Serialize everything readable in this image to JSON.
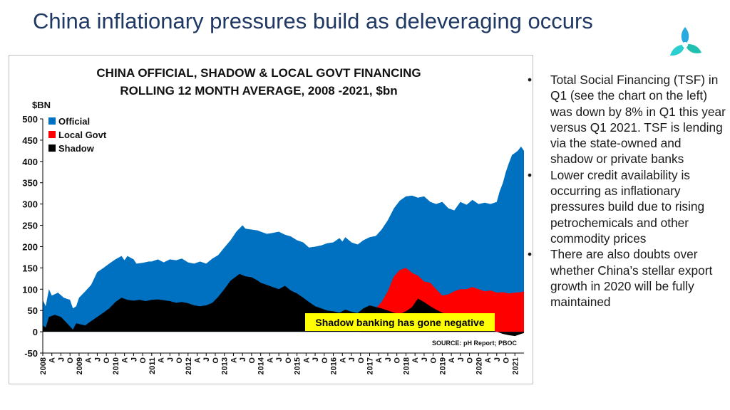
{
  "slide": {
    "title": "China inflationary pressures build as deleveraging occurs",
    "logo_icon": "company-logo-icon"
  },
  "bullets": [
    "Total Social Financing (TSF) in Q1 (see the chart on the left) was down by 8% in Q1 this year versus Q1 2021. TSF is lending via the state-owned and shadow or private banks",
    "Lower credit availability is occurring as inflationary pressures build due to rising petrochemicals and other commodity prices",
    "There are also doubts over whether China’s stellar export growth in 2020 will be fully maintained"
  ],
  "chart_data": {
    "type": "area",
    "title": [
      "CHINA OFFICIAL, SHADOW & LOCAL GOVT FINANCING",
      "ROLLING 12 MONTH AVERAGE, 2008 -2021, $bn"
    ],
    "ylabel": "$BN",
    "ylim": [
      -50,
      500
    ],
    "yticks": [
      -50,
      0,
      50,
      100,
      150,
      200,
      250,
      300,
      350,
      400,
      450,
      500
    ],
    "xlim": [
      2008.0,
      2021.25
    ],
    "xtick_labels": [
      {
        "x": 2008.0,
        "label": "2008"
      },
      {
        "x": 2008.25,
        "label": "A"
      },
      {
        "x": 2008.5,
        "label": "J"
      },
      {
        "x": 2008.75,
        "label": "O"
      },
      {
        "x": 2009.0,
        "label": "2009"
      },
      {
        "x": 2009.25,
        "label": "A"
      },
      {
        "x": 2009.5,
        "label": "J"
      },
      {
        "x": 2009.75,
        "label": "O"
      },
      {
        "x": 2010.0,
        "label": "2010"
      },
      {
        "x": 2010.25,
        "label": "A"
      },
      {
        "x": 2010.5,
        "label": "J"
      },
      {
        "x": 2010.75,
        "label": "O"
      },
      {
        "x": 2011.0,
        "label": "2011"
      },
      {
        "x": 2011.25,
        "label": "A"
      },
      {
        "x": 2011.5,
        "label": "J"
      },
      {
        "x": 2011.75,
        "label": "O"
      },
      {
        "x": 2012.0,
        "label": "2012"
      },
      {
        "x": 2012.25,
        "label": "A"
      },
      {
        "x": 2012.5,
        "label": "J"
      },
      {
        "x": 2012.75,
        "label": "O"
      },
      {
        "x": 2013.0,
        "label": "2013"
      },
      {
        "x": 2013.25,
        "label": "A"
      },
      {
        "x": 2013.5,
        "label": "J"
      },
      {
        "x": 2013.75,
        "label": "O"
      },
      {
        "x": 2014.0,
        "label": "2014"
      },
      {
        "x": 2014.25,
        "label": "A"
      },
      {
        "x": 2014.5,
        "label": "J"
      },
      {
        "x": 2014.75,
        "label": "O"
      },
      {
        "x": 2015.0,
        "label": "2015"
      },
      {
        "x": 2015.25,
        "label": "A"
      },
      {
        "x": 2015.5,
        "label": "J"
      },
      {
        "x": 2015.75,
        "label": "O"
      },
      {
        "x": 2016.0,
        "label": "2016"
      },
      {
        "x": 2016.25,
        "label": "A"
      },
      {
        "x": 2016.5,
        "label": "J"
      },
      {
        "x": 2016.75,
        "label": "O"
      },
      {
        "x": 2017.0,
        "label": "2017"
      },
      {
        "x": 2017.25,
        "label": "A"
      },
      {
        "x": 2017.5,
        "label": "J"
      },
      {
        "x": 2017.75,
        "label": "O"
      },
      {
        "x": 2018.0,
        "label": "2018"
      },
      {
        "x": 2018.25,
        "label": "A"
      },
      {
        "x": 2018.5,
        "label": "J"
      },
      {
        "x": 2018.75,
        "label": "O"
      },
      {
        "x": 2019.0,
        "label": "2019"
      },
      {
        "x": 2019.25,
        "label": "A"
      },
      {
        "x": 2019.5,
        "label": "J"
      },
      {
        "x": 2019.75,
        "label": "O"
      },
      {
        "x": 2020.0,
        "label": "2020"
      },
      {
        "x": 2020.25,
        "label": "A"
      },
      {
        "x": 2020.5,
        "label": "J"
      },
      {
        "x": 2020.75,
        "label": "O"
      },
      {
        "x": 2021.0,
        "label": "2021"
      }
    ],
    "legend": {
      "placement": "top-left"
    },
    "grid": false,
    "series": [
      {
        "name": "Official",
        "color": "#0070c0",
        "note": "top of stacked total",
        "points": [
          [
            2008.0,
            75
          ],
          [
            2008.08,
            60
          ],
          [
            2008.17,
            100
          ],
          [
            2008.25,
            85
          ],
          [
            2008.42,
            92
          ],
          [
            2008.58,
            80
          ],
          [
            2008.75,
            75
          ],
          [
            2008.83,
            55
          ],
          [
            2008.92,
            60
          ],
          [
            2009.0,
            80
          ],
          [
            2009.17,
            95
          ],
          [
            2009.33,
            110
          ],
          [
            2009.5,
            140
          ],
          [
            2009.67,
            150
          ],
          [
            2009.83,
            160
          ],
          [
            2010.0,
            170
          ],
          [
            2010.17,
            178
          ],
          [
            2010.25,
            168
          ],
          [
            2010.33,
            178
          ],
          [
            2010.5,
            170
          ],
          [
            2010.58,
            160
          ],
          [
            2010.75,
            162
          ],
          [
            2010.92,
            165
          ],
          [
            2011.0,
            165
          ],
          [
            2011.17,
            170
          ],
          [
            2011.33,
            163
          ],
          [
            2011.5,
            170
          ],
          [
            2011.67,
            168
          ],
          [
            2011.83,
            172
          ],
          [
            2012.0,
            163
          ],
          [
            2012.17,
            160
          ],
          [
            2012.33,
            165
          ],
          [
            2012.5,
            160
          ],
          [
            2012.67,
            172
          ],
          [
            2012.83,
            180
          ],
          [
            2013.0,
            198
          ],
          [
            2013.17,
            215
          ],
          [
            2013.33,
            235
          ],
          [
            2013.5,
            250
          ],
          [
            2013.58,
            242
          ],
          [
            2013.75,
            240
          ],
          [
            2013.92,
            238
          ],
          [
            2014.0,
            235
          ],
          [
            2014.17,
            230
          ],
          [
            2014.33,
            232
          ],
          [
            2014.5,
            235
          ],
          [
            2014.67,
            228
          ],
          [
            2014.83,
            224
          ],
          [
            2015.0,
            215
          ],
          [
            2015.17,
            210
          ],
          [
            2015.33,
            198
          ],
          [
            2015.5,
            200
          ],
          [
            2015.67,
            203
          ],
          [
            2015.83,
            208
          ],
          [
            2016.0,
            210
          ],
          [
            2016.17,
            220
          ],
          [
            2016.25,
            212
          ],
          [
            2016.33,
            222
          ],
          [
            2016.5,
            210
          ],
          [
            2016.67,
            205
          ],
          [
            2016.83,
            215
          ],
          [
            2017.0,
            222
          ],
          [
            2017.17,
            225
          ],
          [
            2017.33,
            240
          ],
          [
            2017.5,
            262
          ],
          [
            2017.67,
            290
          ],
          [
            2017.83,
            308
          ],
          [
            2018.0,
            318
          ],
          [
            2018.17,
            320
          ],
          [
            2018.33,
            315
          ],
          [
            2018.5,
            318
          ],
          [
            2018.67,
            305
          ],
          [
            2018.83,
            300
          ],
          [
            2019.0,
            305
          ],
          [
            2019.17,
            290
          ],
          [
            2019.33,
            285
          ],
          [
            2019.5,
            305
          ],
          [
            2019.67,
            298
          ],
          [
            2019.83,
            310
          ],
          [
            2020.0,
            300
          ],
          [
            2020.17,
            303
          ],
          [
            2020.33,
            300
          ],
          [
            2020.5,
            305
          ],
          [
            2020.58,
            330
          ],
          [
            2020.67,
            350
          ],
          [
            2020.75,
            375
          ],
          [
            2020.83,
            395
          ],
          [
            2020.92,
            415
          ],
          [
            2021.0,
            420
          ],
          [
            2021.08,
            425
          ],
          [
            2021.17,
            435
          ],
          [
            2021.25,
            425
          ]
        ]
      },
      {
        "name": "Local Govt",
        "color": "#ff0000",
        "note": "stacked top of local govt band from 2017",
        "points": [
          [
            2016.75,
            42
          ],
          [
            2017.0,
            50
          ],
          [
            2017.17,
            55
          ],
          [
            2017.33,
            70
          ],
          [
            2017.5,
            95
          ],
          [
            2017.67,
            130
          ],
          [
            2017.83,
            145
          ],
          [
            2018.0,
            150
          ],
          [
            2018.17,
            138
          ],
          [
            2018.33,
            132
          ],
          [
            2018.5,
            118
          ],
          [
            2018.67,
            115
          ],
          [
            2018.83,
            100
          ],
          [
            2019.0,
            85
          ],
          [
            2019.17,
            88
          ],
          [
            2019.33,
            95
          ],
          [
            2019.5,
            100
          ],
          [
            2019.67,
            100
          ],
          [
            2019.83,
            105
          ],
          [
            2020.0,
            100
          ],
          [
            2020.17,
            95
          ],
          [
            2020.33,
            97
          ],
          [
            2020.5,
            92
          ],
          [
            2020.67,
            93
          ],
          [
            2020.83,
            90
          ],
          [
            2021.0,
            92
          ],
          [
            2021.17,
            93
          ],
          [
            2021.25,
            95
          ]
        ]
      },
      {
        "name": "Shadow",
        "color": "#000000",
        "points": [
          [
            2008.0,
            15
          ],
          [
            2008.08,
            10
          ],
          [
            2008.17,
            35
          ],
          [
            2008.33,
            40
          ],
          [
            2008.5,
            35
          ],
          [
            2008.67,
            20
          ],
          [
            2008.83,
            5
          ],
          [
            2008.92,
            20
          ],
          [
            2009.0,
            18
          ],
          [
            2009.17,
            15
          ],
          [
            2009.33,
            25
          ],
          [
            2009.5,
            35
          ],
          [
            2009.67,
            45
          ],
          [
            2009.83,
            55
          ],
          [
            2010.0,
            70
          ],
          [
            2010.17,
            80
          ],
          [
            2010.33,
            75
          ],
          [
            2010.5,
            73
          ],
          [
            2010.67,
            75
          ],
          [
            2010.83,
            72
          ],
          [
            2011.0,
            75
          ],
          [
            2011.17,
            76
          ],
          [
            2011.33,
            74
          ],
          [
            2011.5,
            72
          ],
          [
            2011.67,
            68
          ],
          [
            2011.83,
            70
          ],
          [
            2012.0,
            67
          ],
          [
            2012.17,
            62
          ],
          [
            2012.33,
            60
          ],
          [
            2012.5,
            62
          ],
          [
            2012.67,
            68
          ],
          [
            2012.83,
            82
          ],
          [
            2013.0,
            100
          ],
          [
            2013.17,
            120
          ],
          [
            2013.33,
            130
          ],
          [
            2013.42,
            136
          ],
          [
            2013.58,
            130
          ],
          [
            2013.75,
            128
          ],
          [
            2013.92,
            120
          ],
          [
            2014.0,
            115
          ],
          [
            2014.17,
            110
          ],
          [
            2014.33,
            105
          ],
          [
            2014.5,
            100
          ],
          [
            2014.67,
            108
          ],
          [
            2014.83,
            97
          ],
          [
            2015.0,
            90
          ],
          [
            2015.17,
            80
          ],
          [
            2015.33,
            70
          ],
          [
            2015.5,
            60
          ],
          [
            2015.67,
            55
          ],
          [
            2015.83,
            50
          ],
          [
            2016.0,
            48
          ],
          [
            2016.17,
            45
          ],
          [
            2016.33,
            52
          ],
          [
            2016.5,
            47
          ],
          [
            2016.67,
            44
          ],
          [
            2016.83,
            55
          ],
          [
            2017.0,
            62
          ],
          [
            2017.17,
            58
          ],
          [
            2017.33,
            55
          ],
          [
            2017.5,
            50
          ],
          [
            2017.67,
            45
          ],
          [
            2017.83,
            42
          ],
          [
            2018.0,
            48
          ],
          [
            2018.17,
            58
          ],
          [
            2018.33,
            78
          ],
          [
            2018.5,
            70
          ],
          [
            2018.67,
            60
          ],
          [
            2018.83,
            52
          ],
          [
            2019.0,
            45
          ],
          [
            2019.17,
            40
          ],
          [
            2019.33,
            38
          ],
          [
            2019.5,
            35
          ],
          [
            2019.67,
            30
          ],
          [
            2019.83,
            25
          ],
          [
            2020.0,
            15
          ],
          [
            2020.17,
            10
          ],
          [
            2020.33,
            5
          ],
          [
            2020.5,
            0
          ],
          [
            2020.67,
            -5
          ],
          [
            2020.83,
            -8
          ],
          [
            2021.0,
            -10
          ],
          [
            2021.17,
            -5
          ],
          [
            2021.25,
            -3
          ]
        ]
      }
    ],
    "annotations": {
      "callout": "Shadow banking has gone negative",
      "source": "SOURCE: pH Report; PBOC"
    }
  }
}
